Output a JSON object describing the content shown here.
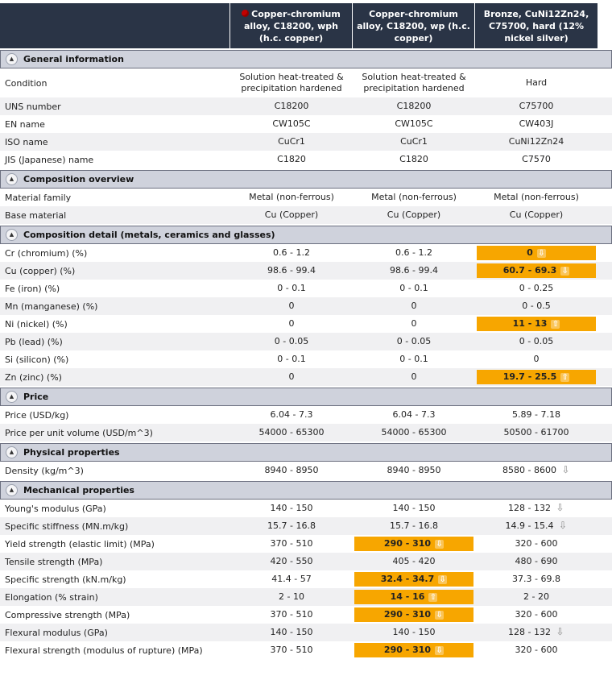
{
  "header": {
    "columns": [
      "Copper-chromium alloy, C18200, wph (h.c. copper)",
      "Copper-chromium alloy, C18200, wp (h.c. copper)",
      "Bronze, CuNi12Zn24, C75700, hard (12% nickel silver)"
    ]
  },
  "sections": [
    {
      "title": "General information",
      "rows": [
        {
          "label": "Condition",
          "tall": true,
          "values": [
            {
              "v": "Solution heat-treated & precipitation hardened"
            },
            {
              "v": "Solution heat-treated & precipitation hardened"
            },
            {
              "v": "Hard"
            }
          ]
        },
        {
          "label": "UNS number",
          "values": [
            {
              "v": "C18200"
            },
            {
              "v": "C18200"
            },
            {
              "v": "C75700"
            }
          ]
        },
        {
          "label": "EN name",
          "values": [
            {
              "v": "CW105C"
            },
            {
              "v": "CW105C"
            },
            {
              "v": "CW403J"
            }
          ]
        },
        {
          "label": "ISO name",
          "values": [
            {
              "v": "CuCr1"
            },
            {
              "v": "CuCr1"
            },
            {
              "v": "CuNi12Zn24"
            }
          ]
        },
        {
          "label": "JIS (Japanese) name",
          "values": [
            {
              "v": "C1820"
            },
            {
              "v": "C1820"
            },
            {
              "v": "C7570"
            }
          ]
        }
      ]
    },
    {
      "title": "Composition overview",
      "rows": [
        {
          "label": "Material family",
          "values": [
            {
              "v": "Metal (non-ferrous)"
            },
            {
              "v": "Metal (non-ferrous)"
            },
            {
              "v": "Metal (non-ferrous)"
            }
          ]
        },
        {
          "label": "Base material",
          "values": [
            {
              "v": "Cu (Copper)"
            },
            {
              "v": "Cu (Copper)"
            },
            {
              "v": "Cu (Copper)"
            }
          ]
        }
      ]
    },
    {
      "title": "Composition detail (metals, ceramics and glasses)",
      "rows": [
        {
          "label": "Cr (chromium) (%)",
          "values": [
            {
              "v": "0.6 - 1.2"
            },
            {
              "v": "0.6 - 1.2"
            },
            {
              "v": "0",
              "hl": true,
              "arrow": "down"
            }
          ]
        },
        {
          "label": "Cu (copper) (%)",
          "values": [
            {
              "v": "98.6 - 99.4"
            },
            {
              "v": "98.6 - 99.4"
            },
            {
              "v": "60.7 - 69.3",
              "hl": true,
              "arrow": "down"
            }
          ]
        },
        {
          "label": "Fe (iron) (%)",
          "values": [
            {
              "v": "0 - 0.1"
            },
            {
              "v": "0 - 0.1"
            },
            {
              "v": "0 - 0.25"
            }
          ]
        },
        {
          "label": "Mn (manganese) (%)",
          "values": [
            {
              "v": "0"
            },
            {
              "v": "0"
            },
            {
              "v": "0 - 0.5"
            }
          ]
        },
        {
          "label": "Ni (nickel) (%)",
          "values": [
            {
              "v": "0"
            },
            {
              "v": "0"
            },
            {
              "v": "11 - 13",
              "hl": true,
              "arrow": "up"
            }
          ]
        },
        {
          "label": "Pb (lead) (%)",
          "values": [
            {
              "v": "0 - 0.05"
            },
            {
              "v": "0 - 0.05"
            },
            {
              "v": "0 - 0.05"
            }
          ]
        },
        {
          "label": "Si (silicon) (%)",
          "values": [
            {
              "v": "0 - 0.1"
            },
            {
              "v": "0 - 0.1"
            },
            {
              "v": "0"
            }
          ]
        },
        {
          "label": "Zn (zinc) (%)",
          "values": [
            {
              "v": "0"
            },
            {
              "v": "0"
            },
            {
              "v": "19.7 - 25.5",
              "hl": true,
              "arrow": "up"
            }
          ]
        }
      ]
    },
    {
      "title": "Price",
      "rows": [
        {
          "label": "Price (USD/kg)",
          "values": [
            {
              "v": "6.04 - 7.3"
            },
            {
              "v": "6.04 - 7.3"
            },
            {
              "v": "5.89 - 7.18"
            }
          ]
        },
        {
          "label": "Price per unit volume (USD/m^3)",
          "values": [
            {
              "v": "54000 - 65300"
            },
            {
              "v": "54000 - 65300"
            },
            {
              "v": "50500 - 61700"
            }
          ]
        }
      ]
    },
    {
      "title": "Physical properties",
      "rows": [
        {
          "label": "Density (kg/m^3)",
          "values": [
            {
              "v": "8940 - 8950"
            },
            {
              "v": "8940 - 8950"
            },
            {
              "v": "8580 - 8600",
              "arrow": "down-grey"
            }
          ]
        }
      ]
    },
    {
      "title": "Mechanical properties",
      "rows": [
        {
          "label": "Young's modulus (GPa)",
          "values": [
            {
              "v": "140 - 150"
            },
            {
              "v": "140 - 150"
            },
            {
              "v": "128 - 132",
              "arrow": "down-grey"
            }
          ]
        },
        {
          "label": "Specific stiffness (MN.m/kg)",
          "values": [
            {
              "v": "15.7 - 16.8"
            },
            {
              "v": "15.7 - 16.8"
            },
            {
              "v": "14.9 - 15.4",
              "arrow": "down-grey"
            }
          ]
        },
        {
          "label": "Yield strength (elastic limit) (MPa)",
          "values": [
            {
              "v": "370 - 510"
            },
            {
              "v": "290 - 310",
              "hl": true,
              "arrow": "down"
            },
            {
              "v": "320 - 600"
            }
          ]
        },
        {
          "label": "Tensile strength (MPa)",
          "values": [
            {
              "v": "420 - 550"
            },
            {
              "v": "405 - 420"
            },
            {
              "v": "480 - 690"
            }
          ]
        },
        {
          "label": "Specific strength (kN.m/kg)",
          "values": [
            {
              "v": "41.4 - 57"
            },
            {
              "v": "32.4 - 34.7",
              "hl": true,
              "arrow": "down"
            },
            {
              "v": "37.3 - 69.8"
            }
          ]
        },
        {
          "label": "Elongation (% strain)",
          "values": [
            {
              "v": "2 - 10"
            },
            {
              "v": "14 - 16",
              "hl": true,
              "arrow": "up"
            },
            {
              "v": "2 - 20"
            }
          ]
        },
        {
          "label": "Compressive strength (MPa)",
          "values": [
            {
              "v": "370 - 510"
            },
            {
              "v": "290 - 310",
              "hl": true,
              "arrow": "down"
            },
            {
              "v": "320 - 600"
            }
          ]
        },
        {
          "label": "Flexural modulus (GPa)",
          "values": [
            {
              "v": "140 - 150"
            },
            {
              "v": "140 - 150"
            },
            {
              "v": "128 - 132",
              "arrow": "down-grey"
            }
          ]
        },
        {
          "label": "Flexural strength (modulus of rupture) (MPa)",
          "values": [
            {
              "v": "370 - 510"
            },
            {
              "v": "290 - 310",
              "hl": true,
              "arrow": "down"
            },
            {
              "v": "320 - 600"
            }
          ]
        }
      ]
    }
  ]
}
